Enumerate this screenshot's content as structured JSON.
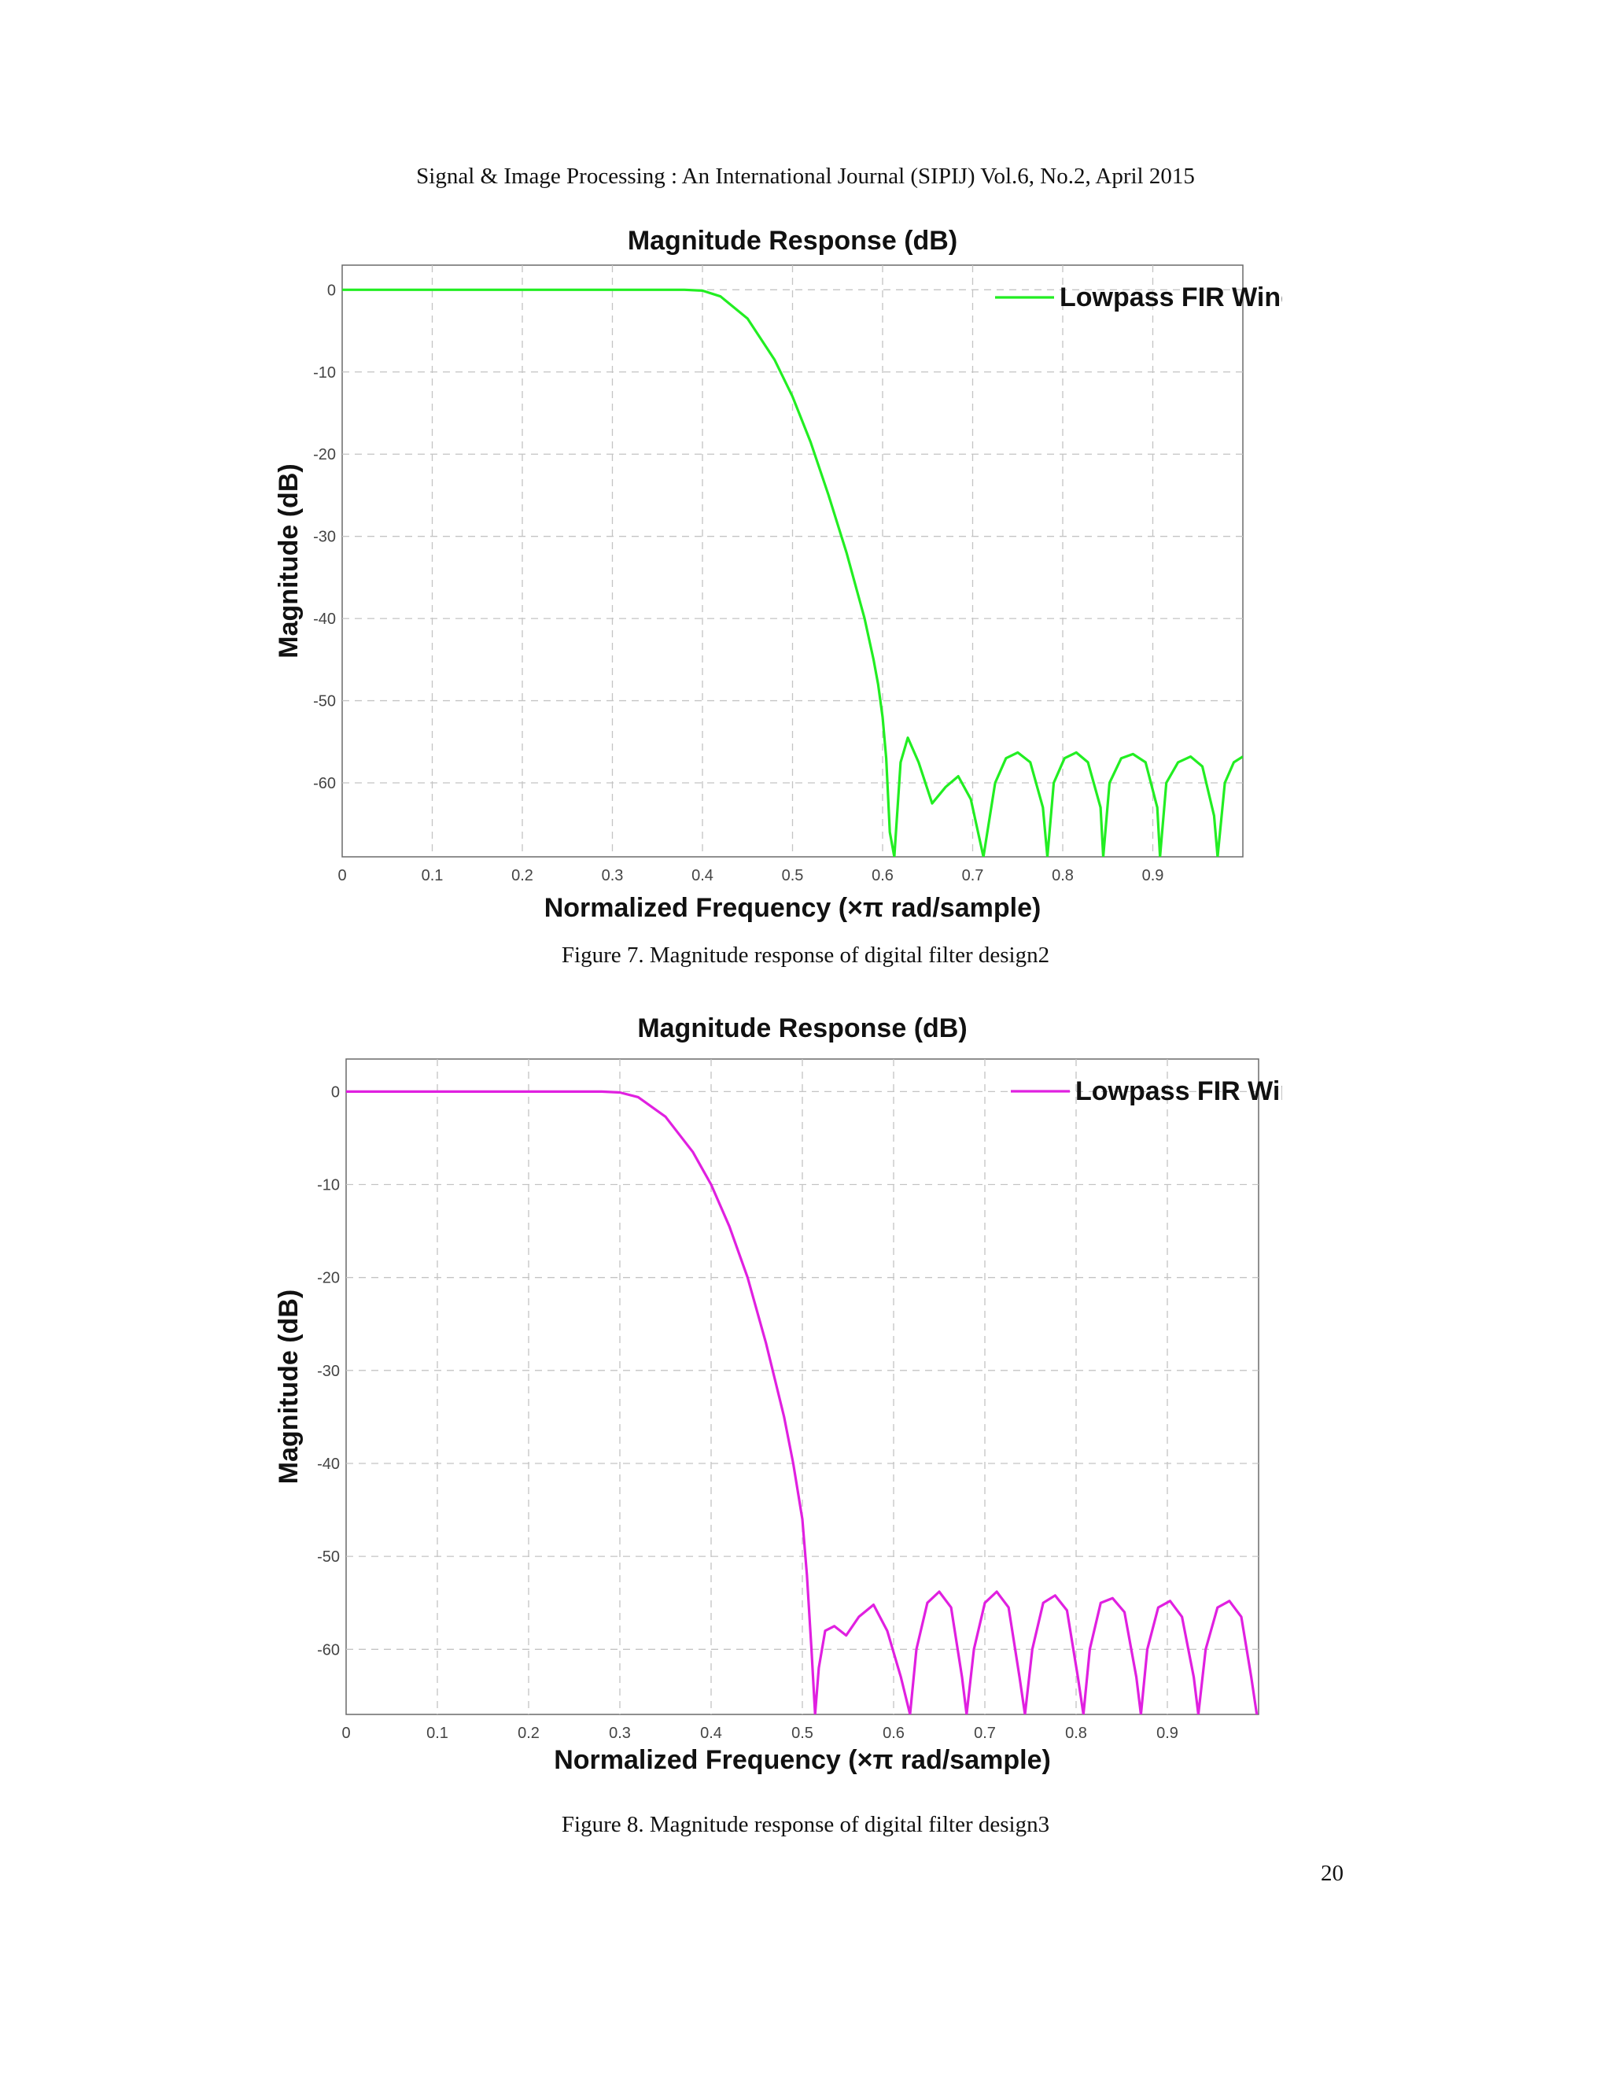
{
  "running_head": "Signal & Image Processing : An International Journal (SIPIJ) Vol.6, No.2, April 2015",
  "page_number": "20",
  "figures": [
    {
      "caption": "Figure 7. Magnitude response of digital filter design2"
    },
    {
      "caption": "Figure 8. Magnitude response of digital filter design3"
    }
  ],
  "chart_data": [
    {
      "type": "line",
      "title": "Magnitude Response (dB)",
      "xlabel": "Normalized Frequency (×π rad/sample)",
      "ylabel": "Magnitude (dB)",
      "xlim": [
        0,
        1
      ],
      "ylim": [
        -69,
        3
      ],
      "xticks": [
        0,
        0.1,
        0.2,
        0.3,
        0.4,
        0.5,
        0.6,
        0.7,
        0.8,
        0.9
      ],
      "xtick_labels": [
        "0",
        "0.1",
        "0.2",
        "0.3",
        "0.4",
        "0.5",
        "0.6",
        "0.7",
        "0.8",
        "0.9"
      ],
      "yticks": [
        0,
        -10,
        -20,
        -30,
        -40,
        -50,
        -60
      ],
      "ytick_labels": [
        "0",
        "-10",
        "-20",
        "-30",
        "-40",
        "-50",
        "-60"
      ],
      "grid": true,
      "legend_position": "top-right",
      "series": [
        {
          "name": "Lowpass FIR Window",
          "color": "#22ee22",
          "x": [
            0,
            0.1,
            0.2,
            0.3,
            0.38,
            0.4,
            0.42,
            0.45,
            0.48,
            0.5,
            0.52,
            0.54,
            0.56,
            0.58,
            0.59,
            0.595,
            0.6,
            0.604,
            0.608,
            0.613,
            0.62,
            0.628,
            0.64,
            0.655,
            0.67,
            0.684,
            0.698,
            0.712,
            0.725,
            0.737,
            0.75,
            0.764,
            0.778,
            0.783,
            0.79,
            0.802,
            0.815,
            0.828,
            0.842,
            0.845,
            0.852,
            0.865,
            0.878,
            0.892,
            0.905,
            0.908,
            0.915,
            0.928,
            0.942,
            0.955,
            0.968,
            0.972,
            0.98,
            0.99,
            1.0
          ],
          "y": [
            0,
            0,
            0,
            0,
            0,
            -0.1,
            -0.8,
            -3.5,
            -8.5,
            -13,
            -18.5,
            -25,
            -32,
            -40,
            -45,
            -48,
            -52,
            -57,
            -66,
            -69,
            -57.5,
            -54.5,
            -57.5,
            -62.5,
            -60.5,
            -59.2,
            -62,
            -69,
            -60,
            -57,
            -56.3,
            -57.5,
            -63,
            -69,
            -60,
            -57,
            -56.3,
            -57.5,
            -63,
            -69,
            -60,
            -57,
            -56.5,
            -57.5,
            -63,
            -69,
            -60,
            -57.5,
            -56.8,
            -58,
            -64,
            -69,
            -60,
            -57.5,
            -56.8
          ]
        }
      ]
    },
    {
      "type": "line",
      "title": "Magnitude Response (dB)",
      "xlabel": "Normalized Frequency (×π rad/sample)",
      "ylabel": "Magnitude (dB)",
      "xlim": [
        0,
        1
      ],
      "ylim": [
        -67,
        3.5
      ],
      "xticks": [
        0,
        0.1,
        0.2,
        0.3,
        0.4,
        0.5,
        0.6,
        0.7,
        0.8,
        0.9
      ],
      "xtick_labels": [
        "0",
        "0.1",
        "0.2",
        "0.3",
        "0.4",
        "0.5",
        "0.6",
        "0.7",
        "0.8",
        "0.9"
      ],
      "yticks": [
        0,
        -10,
        -20,
        -30,
        -40,
        -50,
        -60
      ],
      "ytick_labels": [
        "0",
        "-10",
        "-20",
        "-30",
        "-40",
        "-50",
        "-60"
      ],
      "grid": true,
      "legend_position": "top-right",
      "series": [
        {
          "name": "Lowpass FIR Window",
          "color": "#e020e0",
          "x": [
            0,
            0.1,
            0.2,
            0.28,
            0.3,
            0.32,
            0.35,
            0.38,
            0.4,
            0.42,
            0.44,
            0.46,
            0.48,
            0.49,
            0.5,
            0.505,
            0.51,
            0.514,
            0.518,
            0.525,
            0.535,
            0.548,
            0.562,
            0.578,
            0.593,
            0.608,
            0.618,
            0.625,
            0.637,
            0.65,
            0.663,
            0.675,
            0.68,
            0.688,
            0.7,
            0.713,
            0.726,
            0.738,
            0.744,
            0.752,
            0.764,
            0.777,
            0.79,
            0.802,
            0.808,
            0.815,
            0.827,
            0.84,
            0.853,
            0.866,
            0.871,
            0.878,
            0.89,
            0.903,
            0.916,
            0.929,
            0.934,
            0.942,
            0.955,
            0.968,
            0.981,
            0.992,
            0.998
          ],
          "y": [
            0,
            0,
            0,
            0,
            -0.1,
            -0.6,
            -2.7,
            -6.5,
            -10,
            -14.5,
            -20,
            -27,
            -35,
            -40,
            -46,
            -52,
            -60,
            -67,
            -62,
            -58,
            -57.5,
            -58.5,
            -56.5,
            -55.2,
            -58,
            -63,
            -67,
            -60,
            -55,
            -53.8,
            -55.5,
            -63,
            -67,
            -60,
            -55,
            -53.8,
            -55.5,
            -63,
            -67,
            -60,
            -55,
            -54.2,
            -55.8,
            -63,
            -67,
            -60,
            -55,
            -54.5,
            -56,
            -63,
            -67,
            -60,
            -55.5,
            -54.8,
            -56.5,
            -63,
            -67,
            -60,
            -55.5,
            -54.8,
            -56.5,
            -63,
            -67
          ]
        }
      ]
    }
  ]
}
